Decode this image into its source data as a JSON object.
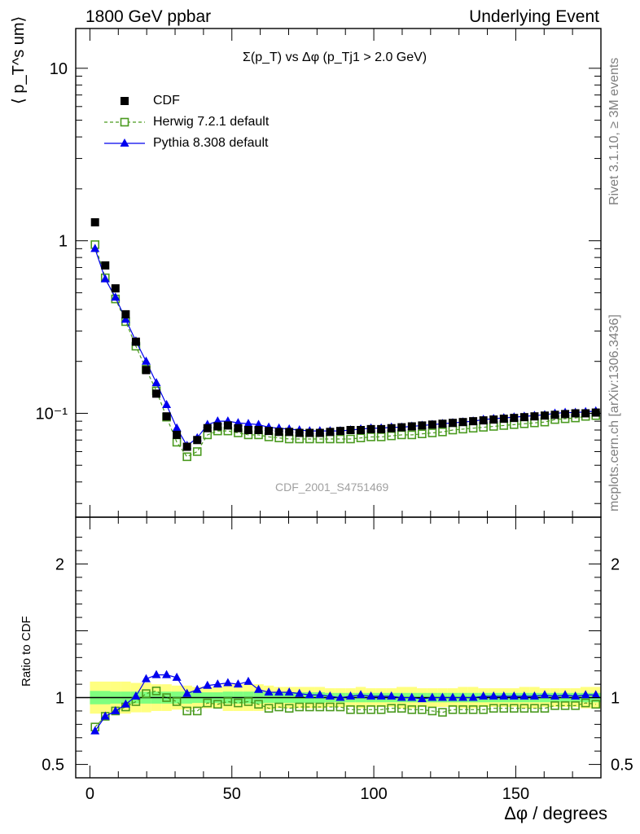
{
  "header": {
    "left": "1800 GeV ppbar",
    "right": "Underlying Event"
  },
  "side_labels": {
    "rivet": "Rivet 3.1.10, ≥ 3M events",
    "mcplots": "mcplots.cern.ch [arXiv:1306.3436]"
  },
  "watermark": "CDF_2001_S4751469",
  "chart_data": [
    {
      "type": "scatter",
      "title": "Σ(p_T) vs Δφ (p_Tj1 > 2.0 GeV)",
      "ylabel": "⟨ p_T^s um⟩",
      "xlabel": "Δφ / degrees",
      "yscale": "log",
      "ylim": [
        0.025,
        17
      ],
      "xlim": [
        -5,
        180
      ],
      "yticks": [
        "10",
        "1",
        "10⁻¹"
      ],
      "legend_position": "top-left",
      "x": [
        1.8,
        5.4,
        9,
        12.6,
        16.2,
        19.8,
        23.4,
        27,
        30.6,
        34.2,
        37.8,
        41.4,
        45,
        48.6,
        52.2,
        55.8,
        59.4,
        63,
        66.6,
        70.2,
        73.8,
        77.4,
        81,
        84.6,
        88.2,
        91.8,
        95.4,
        99,
        102.6,
        106.2,
        109.8,
        113.4,
        117,
        120.6,
        124.2,
        127.8,
        131.4,
        135,
        138.6,
        142.2,
        145.8,
        149.4,
        153,
        156.6,
        160.2,
        163.8,
        167.4,
        171,
        174.6,
        178.2
      ],
      "series": [
        {
          "name": "CDF",
          "marker": "filled-square",
          "color": "#000000",
          "values": [
            1.28,
            0.72,
            0.53,
            0.375,
            0.26,
            0.178,
            0.13,
            0.096,
            0.075,
            0.064,
            0.07,
            0.082,
            0.084,
            0.085,
            0.082,
            0.08,
            0.08,
            0.079,
            0.078,
            0.078,
            0.077,
            0.077,
            0.077,
            0.078,
            0.079,
            0.08,
            0.08,
            0.081,
            0.081,
            0.082,
            0.083,
            0.084,
            0.085,
            0.086,
            0.087,
            0.088,
            0.089,
            0.09,
            0.091,
            0.092,
            0.093,
            0.094,
            0.095,
            0.096,
            0.097,
            0.098,
            0.099,
            0.1,
            0.1,
            0.101
          ]
        },
        {
          "name": "Herwig 7.2.1 default",
          "marker": "open-square",
          "line": "dashed",
          "color": "#4a9a1f",
          "values": [
            0.95,
            0.61,
            0.46,
            0.34,
            0.245,
            0.18,
            0.135,
            0.095,
            0.068,
            0.056,
            0.06,
            0.075,
            0.079,
            0.079,
            0.077,
            0.075,
            0.075,
            0.073,
            0.072,
            0.071,
            0.071,
            0.071,
            0.071,
            0.071,
            0.071,
            0.071,
            0.072,
            0.073,
            0.073,
            0.074,
            0.075,
            0.075,
            0.076,
            0.077,
            0.078,
            0.08,
            0.081,
            0.082,
            0.083,
            0.084,
            0.085,
            0.086,
            0.087,
            0.088,
            0.089,
            0.092,
            0.093,
            0.094,
            0.096,
            0.097
          ]
        },
        {
          "name": "Pythia 8.308 default",
          "marker": "filled-triangle",
          "line": "solid",
          "color": "#0000ee",
          "values": [
            0.9,
            0.6,
            0.47,
            0.35,
            0.262,
            0.2,
            0.15,
            0.112,
            0.082,
            0.065,
            0.072,
            0.086,
            0.09,
            0.09,
            0.088,
            0.087,
            0.086,
            0.083,
            0.082,
            0.081,
            0.08,
            0.079,
            0.079,
            0.079,
            0.079,
            0.08,
            0.081,
            0.082,
            0.082,
            0.083,
            0.083,
            0.084,
            0.085,
            0.086,
            0.087,
            0.088,
            0.089,
            0.09,
            0.092,
            0.093,
            0.094,
            0.095,
            0.096,
            0.097,
            0.098,
            0.1,
            0.101,
            0.101,
            0.102,
            0.103
          ]
        }
      ]
    },
    {
      "type": "scatter",
      "ylabel": "Ratio to CDF",
      "xlabel": "Δφ / degrees",
      "ylim": [
        0.4,
        2.35
      ],
      "xlim": [
        -5,
        180
      ],
      "yticks": [
        "2",
        "1",
        "0.5"
      ],
      "xticks": [
        "0",
        "50",
        "100",
        "150"
      ],
      "bands": {
        "yellow": "#ffff80",
        "green": "#7fff7f",
        "inner_half_width": [
          0.05,
          0.05,
          0.045,
          0.045,
          0.045,
          0.045,
          0.045,
          0.045,
          0.045,
          0.045,
          0.04,
          0.04,
          0.04,
          0.045,
          0.045,
          0.045,
          0.045,
          0.04,
          0.04,
          0.04,
          0.04,
          0.04,
          0.04,
          0.035,
          0.035,
          0.035,
          0.035,
          0.035,
          0.035,
          0.035,
          0.035,
          0.035,
          0.035,
          0.035,
          0.035,
          0.035,
          0.035,
          0.035,
          0.035,
          0.035,
          0.035,
          0.035,
          0.035,
          0.035,
          0.035,
          0.035,
          0.035,
          0.035,
          0.035,
          0.035
        ],
        "outer_half_width": [
          0.12,
          0.12,
          0.12,
          0.12,
          0.11,
          0.11,
          0.1,
          0.1,
          0.09,
          0.09,
          0.08,
          0.08,
          0.08,
          0.1,
          0.1,
          0.1,
          0.1,
          0.09,
          0.08,
          0.08,
          0.08,
          0.08,
          0.08,
          0.07,
          0.07,
          0.07,
          0.08,
          0.07,
          0.07,
          0.07,
          0.08,
          0.08,
          0.07,
          0.07,
          0.07,
          0.07,
          0.08,
          0.08,
          0.07,
          0.07,
          0.07,
          0.07,
          0.08,
          0.08,
          0.07,
          0.07,
          0.07,
          0.07,
          0.08,
          0.08
        ]
      },
      "series": [
        {
          "name": "Herwig 7.2.1 default",
          "marker": "open-square",
          "line": "dashed",
          "color": "#4a9a1f",
          "values": [
            0.78,
            0.86,
            0.9,
            0.93,
            0.97,
            1.03,
            1.05,
            1.0,
            0.97,
            0.9,
            0.9,
            0.96,
            0.95,
            0.97,
            0.96,
            0.97,
            0.95,
            0.92,
            0.93,
            0.92,
            0.93,
            0.93,
            0.93,
            0.93,
            0.93,
            0.91,
            0.91,
            0.91,
            0.91,
            0.92,
            0.92,
            0.91,
            0.91,
            0.9,
            0.89,
            0.91,
            0.91,
            0.91,
            0.91,
            0.92,
            0.92,
            0.92,
            0.92,
            0.92,
            0.92,
            0.94,
            0.94,
            0.94,
            0.96,
            0.95
          ]
        },
        {
          "name": "Pythia 8.308 default",
          "marker": "filled-triangle",
          "line": "solid",
          "color": "#0000ee",
          "values": [
            0.75,
            0.86,
            0.9,
            0.95,
            1.01,
            1.14,
            1.17,
            1.17,
            1.15,
            1.03,
            1.06,
            1.09,
            1.1,
            1.11,
            1.1,
            1.12,
            1.06,
            1.04,
            1.04,
            1.04,
            1.03,
            1.02,
            1.02,
            1.01,
            1.0,
            1.01,
            1.02,
            1.01,
            1.01,
            1.01,
            1.0,
            1.0,
            0.99,
            1.0,
            1.0,
            1.0,
            1.0,
            1.0,
            1.01,
            1.01,
            1.01,
            1.01,
            1.01,
            1.01,
            1.02,
            1.01,
            1.02,
            1.01,
            1.02,
            1.02
          ]
        }
      ]
    }
  ]
}
